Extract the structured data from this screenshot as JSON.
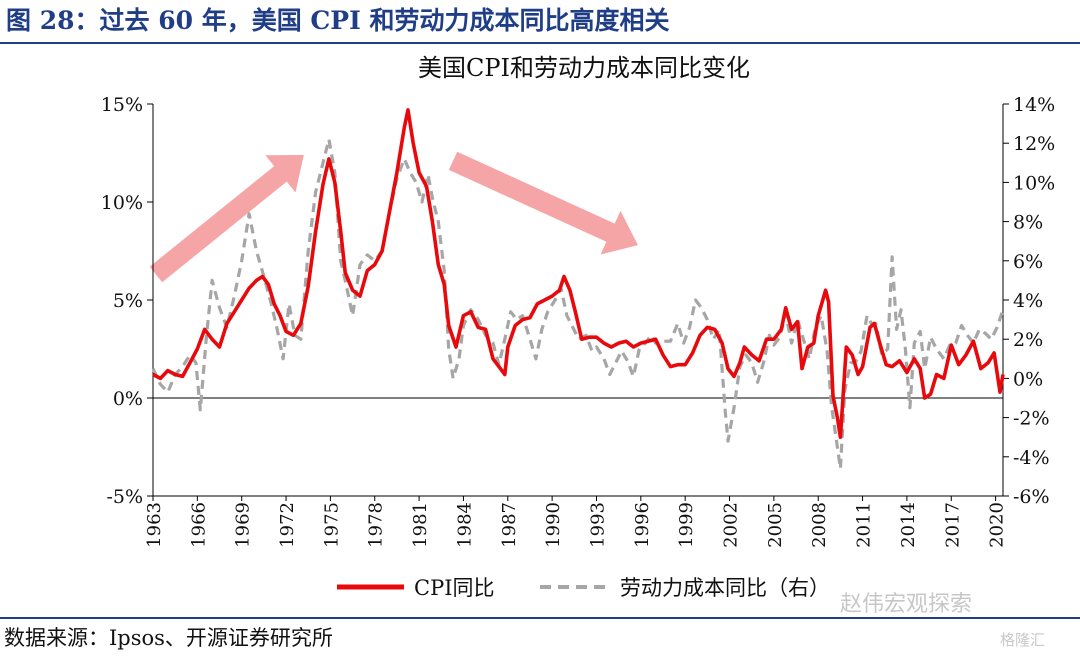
{
  "figure_title": "图 28：过去 60 年，美国 CPI 和劳动力成本同比高度相关",
  "source": "数据来源：Ipsos、开源证券研究所",
  "watermark": "赵伟宏观探索",
  "watermark_small": "格隆汇",
  "colors": {
    "title_blue": "#1f3e86",
    "cpi_red": "#e8090c",
    "labor_gray": "#a6a6a6",
    "arrow_pink": "#f6a5a6"
  },
  "chart_data": {
    "type": "line",
    "title": "美国CPI和劳动力成本同比变化",
    "x_ticks": [
      "1963",
      "1966",
      "1969",
      "1972",
      "1975",
      "1978",
      "1981",
      "1984",
      "1987",
      "1990",
      "1993",
      "1996",
      "1999",
      "2002",
      "2005",
      "2008",
      "2011",
      "2014",
      "2017",
      "2020"
    ],
    "xlim": [
      1963,
      2020.5
    ],
    "y_left": {
      "ylim": [
        -5,
        15
      ],
      "ticks": [
        "-5%",
        "0%",
        "5%",
        "10%",
        "15%"
      ]
    },
    "y_right": {
      "ylim": [
        -6,
        14
      ],
      "ticks": [
        "-6%",
        "-4%",
        "-2%",
        "0%",
        "2%",
        "4%",
        "6%",
        "8%",
        "10%",
        "12%",
        "14%"
      ]
    },
    "legend_position": "bottom",
    "annotations": [
      {
        "type": "arrow",
        "direction": "up-right",
        "from": [
          1963.2,
          6.3
        ],
        "to": [
          1973.2,
          12.4
        ]
      },
      {
        "type": "arrow",
        "direction": "down-right",
        "from": [
          1983.3,
          12.1
        ],
        "to": [
          1995.8,
          7.8
        ]
      }
    ],
    "series": [
      {
        "name": "CPI同比",
        "axis": "left",
        "color": "#e8090c",
        "style": "solid",
        "points": [
          [
            1963.0,
            1.2
          ],
          [
            1963.5,
            1.0
          ],
          [
            1964.0,
            1.4
          ],
          [
            1964.5,
            1.2
          ],
          [
            1965.0,
            1.1
          ],
          [
            1965.5,
            1.8
          ],
          [
            1966.0,
            2.5
          ],
          [
            1966.5,
            3.5
          ],
          [
            1967.0,
            3.0
          ],
          [
            1967.5,
            2.6
          ],
          [
            1968.0,
            3.8
          ],
          [
            1968.5,
            4.4
          ],
          [
            1969.0,
            5.0
          ],
          [
            1969.5,
            5.6
          ],
          [
            1970.0,
            6.0
          ],
          [
            1970.4,
            6.2
          ],
          [
            1970.8,
            5.8
          ],
          [
            1971.2,
            4.8
          ],
          [
            1971.6,
            4.2
          ],
          [
            1972.0,
            3.4
          ],
          [
            1972.5,
            3.2
          ],
          [
            1973.0,
            3.8
          ],
          [
            1973.5,
            5.7
          ],
          [
            1974.0,
            8.5
          ],
          [
            1974.5,
            10.9
          ],
          [
            1974.9,
            12.2
          ],
          [
            1975.3,
            11.0
          ],
          [
            1975.7,
            8.5
          ],
          [
            1976.0,
            6.4
          ],
          [
            1976.5,
            5.5
          ],
          [
            1977.0,
            5.2
          ],
          [
            1977.5,
            6.5
          ],
          [
            1978.0,
            6.8
          ],
          [
            1978.5,
            7.5
          ],
          [
            1979.0,
            9.5
          ],
          [
            1979.5,
            11.5
          ],
          [
            1980.0,
            13.8
          ],
          [
            1980.25,
            14.7
          ],
          [
            1980.6,
            13.0
          ],
          [
            1981.0,
            11.5
          ],
          [
            1981.5,
            10.8
          ],
          [
            1981.9,
            9.0
          ],
          [
            1982.3,
            6.8
          ],
          [
            1982.7,
            5.8
          ],
          [
            1983.0,
            3.7
          ],
          [
            1983.5,
            2.6
          ],
          [
            1984.0,
            4.2
          ],
          [
            1984.5,
            4.4
          ],
          [
            1985.0,
            3.6
          ],
          [
            1985.5,
            3.5
          ],
          [
            1986.0,
            2.0
          ],
          [
            1986.5,
            1.5
          ],
          [
            1986.8,
            1.2
          ],
          [
            1987.0,
            2.6
          ],
          [
            1987.5,
            3.7
          ],
          [
            1988.0,
            4.0
          ],
          [
            1988.5,
            4.1
          ],
          [
            1989.0,
            4.8
          ],
          [
            1989.5,
            5.0
          ],
          [
            1990.0,
            5.2
          ],
          [
            1990.5,
            5.5
          ],
          [
            1990.8,
            6.2
          ],
          [
            1991.2,
            5.5
          ],
          [
            1991.6,
            4.3
          ],
          [
            1992.0,
            3.0
          ],
          [
            1992.5,
            3.1
          ],
          [
            1993.0,
            3.1
          ],
          [
            1993.5,
            2.8
          ],
          [
            1994.0,
            2.6
          ],
          [
            1994.5,
            2.8
          ],
          [
            1995.0,
            2.9
          ],
          [
            1995.5,
            2.6
          ],
          [
            1996.0,
            2.8
          ],
          [
            1996.5,
            2.9
          ],
          [
            1997.0,
            3.0
          ],
          [
            1997.5,
            2.2
          ],
          [
            1998.0,
            1.6
          ],
          [
            1998.5,
            1.7
          ],
          [
            1999.0,
            1.7
          ],
          [
            1999.5,
            2.3
          ],
          [
            2000.0,
            3.2
          ],
          [
            2000.5,
            3.6
          ],
          [
            2001.0,
            3.5
          ],
          [
            2001.5,
            2.8
          ],
          [
            2001.9,
            1.5
          ],
          [
            2002.3,
            1.1
          ],
          [
            2002.7,
            1.8
          ],
          [
            2003.0,
            2.6
          ],
          [
            2003.5,
            2.2
          ],
          [
            2004.0,
            1.9
          ],
          [
            2004.5,
            3.0
          ],
          [
            2005.0,
            3.0
          ],
          [
            2005.5,
            3.5
          ],
          [
            2005.8,
            4.6
          ],
          [
            2006.2,
            3.5
          ],
          [
            2006.6,
            3.9
          ],
          [
            2006.9,
            1.5
          ],
          [
            2007.3,
            2.6
          ],
          [
            2007.7,
            2.8
          ],
          [
            2008.0,
            4.2
          ],
          [
            2008.5,
            5.5
          ],
          [
            2008.7,
            4.9
          ],
          [
            2009.0,
            0.1
          ],
          [
            2009.3,
            -1.0
          ],
          [
            2009.5,
            -2.0
          ],
          [
            2009.9,
            2.6
          ],
          [
            2010.3,
            2.2
          ],
          [
            2010.7,
            1.2
          ],
          [
            2011.0,
            1.6
          ],
          [
            2011.5,
            3.6
          ],
          [
            2011.8,
            3.8
          ],
          [
            2012.2,
            2.7
          ],
          [
            2012.6,
            1.7
          ],
          [
            2013.0,
            1.6
          ],
          [
            2013.5,
            1.9
          ],
          [
            2014.0,
            1.3
          ],
          [
            2014.5,
            2.0
          ],
          [
            2014.9,
            1.5
          ],
          [
            2015.2,
            0.0
          ],
          [
            2015.6,
            0.2
          ],
          [
            2016.0,
            1.2
          ],
          [
            2016.5,
            1.0
          ],
          [
            2017.0,
            2.7
          ],
          [
            2017.5,
            1.7
          ],
          [
            2018.0,
            2.2
          ],
          [
            2018.5,
            2.9
          ],
          [
            2019.0,
            1.5
          ],
          [
            2019.5,
            1.8
          ],
          [
            2019.9,
            2.3
          ],
          [
            2020.3,
            0.3
          ],
          [
            2020.5,
            1.2
          ]
        ]
      },
      {
        "name": "劳动力成本同比（右）",
        "axis": "right",
        "color": "#a6a6a6",
        "style": "dashed",
        "points": [
          [
            1963.0,
            0.5
          ],
          [
            1963.5,
            -0.3
          ],
          [
            1964.0,
            -0.7
          ],
          [
            1964.5,
            0.2
          ],
          [
            1965.0,
            0.6
          ],
          [
            1965.5,
            1.2
          ],
          [
            1965.9,
            0.8
          ],
          [
            1966.2,
            -1.6
          ],
          [
            1966.6,
            2.0
          ],
          [
            1967.0,
            5.0
          ],
          [
            1967.5,
            3.6
          ],
          [
            1968.0,
            2.6
          ],
          [
            1968.5,
            4.2
          ],
          [
            1969.0,
            6.0
          ],
          [
            1969.5,
            8.4
          ],
          [
            1970.0,
            6.5
          ],
          [
            1970.5,
            5.2
          ],
          [
            1971.0,
            3.8
          ],
          [
            1971.4,
            2.5
          ],
          [
            1971.8,
            1.0
          ],
          [
            1972.2,
            3.8
          ],
          [
            1972.6,
            2.2
          ],
          [
            1973.0,
            2.0
          ],
          [
            1973.5,
            6.5
          ],
          [
            1974.0,
            9.5
          ],
          [
            1974.5,
            11.0
          ],
          [
            1974.9,
            12.2
          ],
          [
            1975.3,
            10.5
          ],
          [
            1975.7,
            6.0
          ],
          [
            1976.0,
            5.0
          ],
          [
            1976.5,
            3.2
          ],
          [
            1977.0,
            5.8
          ],
          [
            1977.5,
            6.3
          ],
          [
            1978.0,
            6.0
          ],
          [
            1978.5,
            6.5
          ],
          [
            1979.0,
            8.5
          ],
          [
            1979.5,
            10.2
          ],
          [
            1980.0,
            11.2
          ],
          [
            1980.4,
            10.5
          ],
          [
            1980.8,
            10.0
          ],
          [
            1981.2,
            9.0
          ],
          [
            1981.6,
            10.4
          ],
          [
            1981.9,
            9.2
          ],
          [
            1982.3,
            8.0
          ],
          [
            1982.7,
            5.5
          ],
          [
            1983.0,
            1.5
          ],
          [
            1983.3,
            0.0
          ],
          [
            1983.7,
            1.0
          ],
          [
            1984.0,
            2.7
          ],
          [
            1984.5,
            3.5
          ],
          [
            1985.0,
            3.0
          ],
          [
            1985.5,
            2.2
          ],
          [
            1986.0,
            1.8
          ],
          [
            1986.4,
            0.7
          ],
          [
            1986.8,
            2.0
          ],
          [
            1987.2,
            3.4
          ],
          [
            1987.6,
            3.0
          ],
          [
            1988.0,
            3.2
          ],
          [
            1988.5,
            2.0
          ],
          [
            1988.9,
            1.0
          ],
          [
            1989.3,
            2.5
          ],
          [
            1989.7,
            3.4
          ],
          [
            1990.2,
            4.0
          ],
          [
            1990.6,
            4.6
          ],
          [
            1991.0,
            3.2
          ],
          [
            1991.4,
            2.6
          ],
          [
            1991.8,
            2.0
          ],
          [
            1992.3,
            2.2
          ],
          [
            1992.7,
            1.4
          ],
          [
            1993.0,
            1.6
          ],
          [
            1993.5,
            1.0
          ],
          [
            1993.9,
            0.2
          ],
          [
            1994.3,
            0.8
          ],
          [
            1994.7,
            1.4
          ],
          [
            1995.1,
            0.9
          ],
          [
            1995.5,
            0.1
          ],
          [
            1995.9,
            1.5
          ],
          [
            1996.3,
            1.8
          ],
          [
            1996.7,
            2.2
          ],
          [
            1997.0,
            1.8
          ],
          [
            1997.5,
            1.9
          ],
          [
            1998.0,
            1.9
          ],
          [
            1998.5,
            2.8
          ],
          [
            1998.9,
            1.8
          ],
          [
            1999.3,
            2.6
          ],
          [
            1999.7,
            4.0
          ],
          [
            2000.1,
            3.6
          ],
          [
            2000.5,
            3.0
          ],
          [
            2000.9,
            2.0
          ],
          [
            2001.3,
            2.5
          ],
          [
            2001.7,
            -1.6
          ],
          [
            2001.9,
            -3.2
          ],
          [
            2002.3,
            -1.5
          ],
          [
            2002.7,
            0.6
          ],
          [
            2003.1,
            1.2
          ],
          [
            2003.5,
            0.8
          ],
          [
            2003.9,
            -0.2
          ],
          [
            2004.3,
            0.8
          ],
          [
            2004.7,
            2.2
          ],
          [
            2005.0,
            1.7
          ],
          [
            2005.4,
            2.1
          ],
          [
            2005.8,
            3.3
          ],
          [
            2006.2,
            1.8
          ],
          [
            2006.6,
            3.0
          ],
          [
            2007.0,
            2.0
          ],
          [
            2007.4,
            1.0
          ],
          [
            2007.8,
            2.6
          ],
          [
            2008.2,
            3.2
          ],
          [
            2008.6,
            1.4
          ],
          [
            2008.9,
            -1.4
          ],
          [
            2009.2,
            -3.0
          ],
          [
            2009.5,
            -4.6
          ],
          [
            2009.8,
            -0.6
          ],
          [
            2010.2,
            0.8
          ],
          [
            2010.5,
            0.8
          ],
          [
            2010.9,
            1.4
          ],
          [
            2011.3,
            3.2
          ],
          [
            2011.6,
            2.8
          ],
          [
            2011.9,
            2.8
          ],
          [
            2012.3,
            1.2
          ],
          [
            2012.7,
            1.5
          ],
          [
            2013.0,
            6.2
          ],
          [
            2013.3,
            2.5
          ],
          [
            2013.6,
            3.5
          ],
          [
            2013.9,
            1.5
          ],
          [
            2014.2,
            -1.5
          ],
          [
            2014.5,
            1.8
          ],
          [
            2014.9,
            2.4
          ],
          [
            2015.2,
            0.5
          ],
          [
            2015.6,
            2.1
          ],
          [
            2016.0,
            1.5
          ],
          [
            2016.5,
            1.0
          ],
          [
            2016.9,
            1.7
          ],
          [
            2017.3,
            1.8
          ],
          [
            2017.7,
            2.7
          ],
          [
            2018.1,
            2.2
          ],
          [
            2018.5,
            1.8
          ],
          [
            2018.9,
            2.5
          ],
          [
            2019.3,
            2.3
          ],
          [
            2019.7,
            2.0
          ],
          [
            2020.1,
            2.6
          ],
          [
            2020.5,
            3.5
          ]
        ]
      }
    ]
  }
}
